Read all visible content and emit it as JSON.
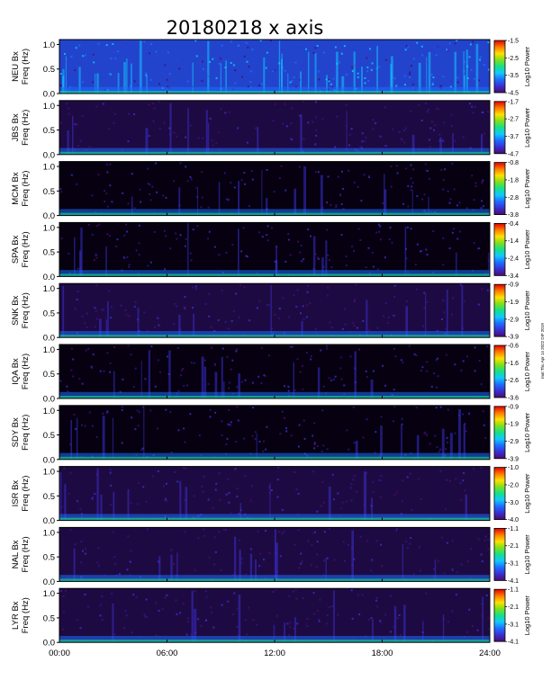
{
  "chart_data": {
    "type": "heatmap",
    "title": "20180218  x axis",
    "xlabel": "",
    "x_ticks": [
      "00:00",
      "06:00",
      "12:00",
      "18:00",
      "24:00"
    ],
    "x_range_hours": [
      0,
      24
    ],
    "ylabel": "Freq (Hz)",
    "y_ticks": [
      "0.0",
      "0.5",
      "1.0"
    ],
    "y_range_hz": [
      0.0,
      1.1
    ],
    "colorbar_label": "Log10 Power",
    "colormap": [
      "#000000",
      "#4b0a6e",
      "#3a2fd0",
      "#1e6cff",
      "#12c8ff",
      "#14e08a",
      "#7de01c",
      "#ffe000",
      "#ff7a00",
      "#e00000"
    ],
    "side_note": "mat  Thu  Apr 14  2022  DIF 2019",
    "panels": [
      {
        "station": "NEU Bx",
        "cbar_ticks": [
          "-1.5",
          "-2.5",
          "-3.5",
          "-4.5"
        ],
        "cbar_range": [
          -4.5,
          -1.5
        ],
        "background": "noisy"
      },
      {
        "station": "JBS Bx",
        "cbar_ticks": [
          "-1.7",
          "-2.7",
          "-3.7",
          "-4.7"
        ],
        "cbar_range": [
          -4.7,
          -1.7
        ],
        "background": "medium"
      },
      {
        "station": "MCM Bx",
        "cbar_ticks": [
          "-0.8",
          "-1.8",
          "-2.8",
          "-3.8"
        ],
        "cbar_range": [
          -3.8,
          -0.8
        ],
        "background": "dark"
      },
      {
        "station": "SPA Bx",
        "cbar_ticks": [
          "-0.4",
          "-1.4",
          "-2.4",
          "-3.4"
        ],
        "cbar_range": [
          -3.4,
          -0.4
        ],
        "background": "dark"
      },
      {
        "station": "SNK Bx",
        "cbar_ticks": [
          "-0.9",
          "-1.9",
          "-2.9",
          "-3.9"
        ],
        "cbar_range": [
          -3.9,
          -0.9
        ],
        "background": "medium"
      },
      {
        "station": "IQA Bx",
        "cbar_ticks": [
          "-0.6",
          "-1.6",
          "-2.6",
          "-3.6"
        ],
        "cbar_range": [
          -3.6,
          -0.6
        ],
        "background": "dark"
      },
      {
        "station": "SDY Bx",
        "cbar_ticks": [
          "-0.9",
          "-1.9",
          "-2.9",
          "-3.9"
        ],
        "cbar_range": [
          -3.9,
          -0.9
        ],
        "background": "dark"
      },
      {
        "station": "ISR Bx",
        "cbar_ticks": [
          "-1.0",
          "-2.0",
          "-3.0",
          "-4.0"
        ],
        "cbar_range": [
          -4.0,
          -1.0
        ],
        "background": "medium"
      },
      {
        "station": "NAL Bx",
        "cbar_ticks": [
          "-1.1",
          "-2.1",
          "-3.1",
          "-4.1"
        ],
        "cbar_range": [
          -4.1,
          -1.1
        ],
        "background": "medium"
      },
      {
        "station": "LYR Bx",
        "cbar_ticks": [
          "-1.1",
          "-2.1",
          "-3.1",
          "-4.1"
        ],
        "cbar_range": [
          -4.1,
          -1.1
        ],
        "background": "medium"
      }
    ]
  }
}
